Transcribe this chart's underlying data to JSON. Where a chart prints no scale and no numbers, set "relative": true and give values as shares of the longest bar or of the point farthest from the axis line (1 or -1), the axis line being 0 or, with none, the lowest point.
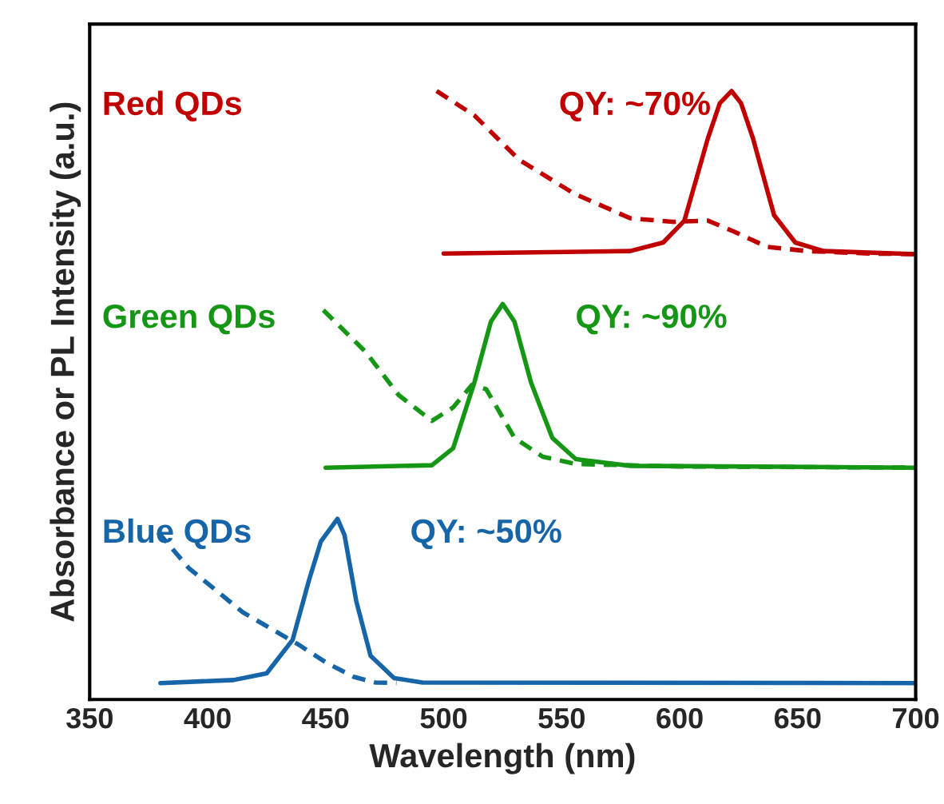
{
  "chart_data": {
    "type": "line",
    "relative": true,
    "xlabel": "Wavelength (nm)",
    "ylabel": "Absorbance or PL Intensity (a.u.)",
    "xlim": [
      350,
      700
    ],
    "xticks": [
      350,
      400,
      450,
      500,
      550,
      600,
      650,
      700
    ],
    "grid": false,
    "legend": false,
    "marker": "none",
    "series": [
      {
        "name": "Red QDs",
        "color": "#c00000",
        "line_style": "solid",
        "x": [
          500,
          579,
          593,
          602,
          612,
          617,
          622,
          626,
          631,
          640,
          649,
          661,
          700
        ],
        "values": [
          0.733,
          0.737,
          0.751,
          0.787,
          0.923,
          0.98,
          1.0,
          0.98,
          0.923,
          0.796,
          0.751,
          0.737,
          0.732
        ]
      },
      {
        "color": "#c00000",
        "line_style": "dashed",
        "x": [
          497,
          513,
          532,
          555,
          579,
          597,
          612,
          623,
          637,
          654,
          680,
          700
        ],
        "values": [
          1.0,
          0.96,
          0.887,
          0.832,
          0.791,
          0.785,
          0.787,
          0.769,
          0.744,
          0.737,
          0.733,
          0.732
        ]
      },
      {
        "name": "Green QDs",
        "color": "#159615",
        "line_style": "solid",
        "x": [
          450,
          495,
          504,
          513,
          520,
          525,
          530,
          537,
          546,
          556,
          579,
          700
        ],
        "values": [
          0.381,
          0.385,
          0.413,
          0.521,
          0.621,
          0.65,
          0.621,
          0.521,
          0.43,
          0.395,
          0.384,
          0.381
        ]
      },
      {
        "color": "#159615",
        "line_style": "dashed",
        "x": [
          449,
          467,
          481,
          495,
          504,
          512,
          518,
          530,
          542,
          556,
          600,
          700
        ],
        "values": [
          0.64,
          0.571,
          0.5,
          0.458,
          0.48,
          0.517,
          0.51,
          0.43,
          0.399,
          0.387,
          0.383,
          0.381
        ]
      },
      {
        "name": "Blue QDs",
        "color": "#1565a8",
        "line_style": "solid",
        "x": [
          380,
          411,
          425,
          436,
          443,
          448,
          455,
          458,
          463,
          469,
          479,
          491,
          700
        ],
        "values": [
          0.027,
          0.032,
          0.043,
          0.098,
          0.197,
          0.26,
          0.297,
          0.27,
          0.161,
          0.072,
          0.035,
          0.028,
          0.027
        ]
      },
      {
        "color": "#1565a8",
        "line_style": "dashed",
        "x": [
          379,
          392,
          415,
          439,
          450,
          462,
          471,
          480
        ],
        "values": [
          0.275,
          0.216,
          0.143,
          0.089,
          0.061,
          0.037,
          0.028,
          0.027
        ]
      }
    ],
    "annotations": [
      "QY: ~70%",
      "QY: ~90%",
      "QY: ~50%"
    ]
  }
}
